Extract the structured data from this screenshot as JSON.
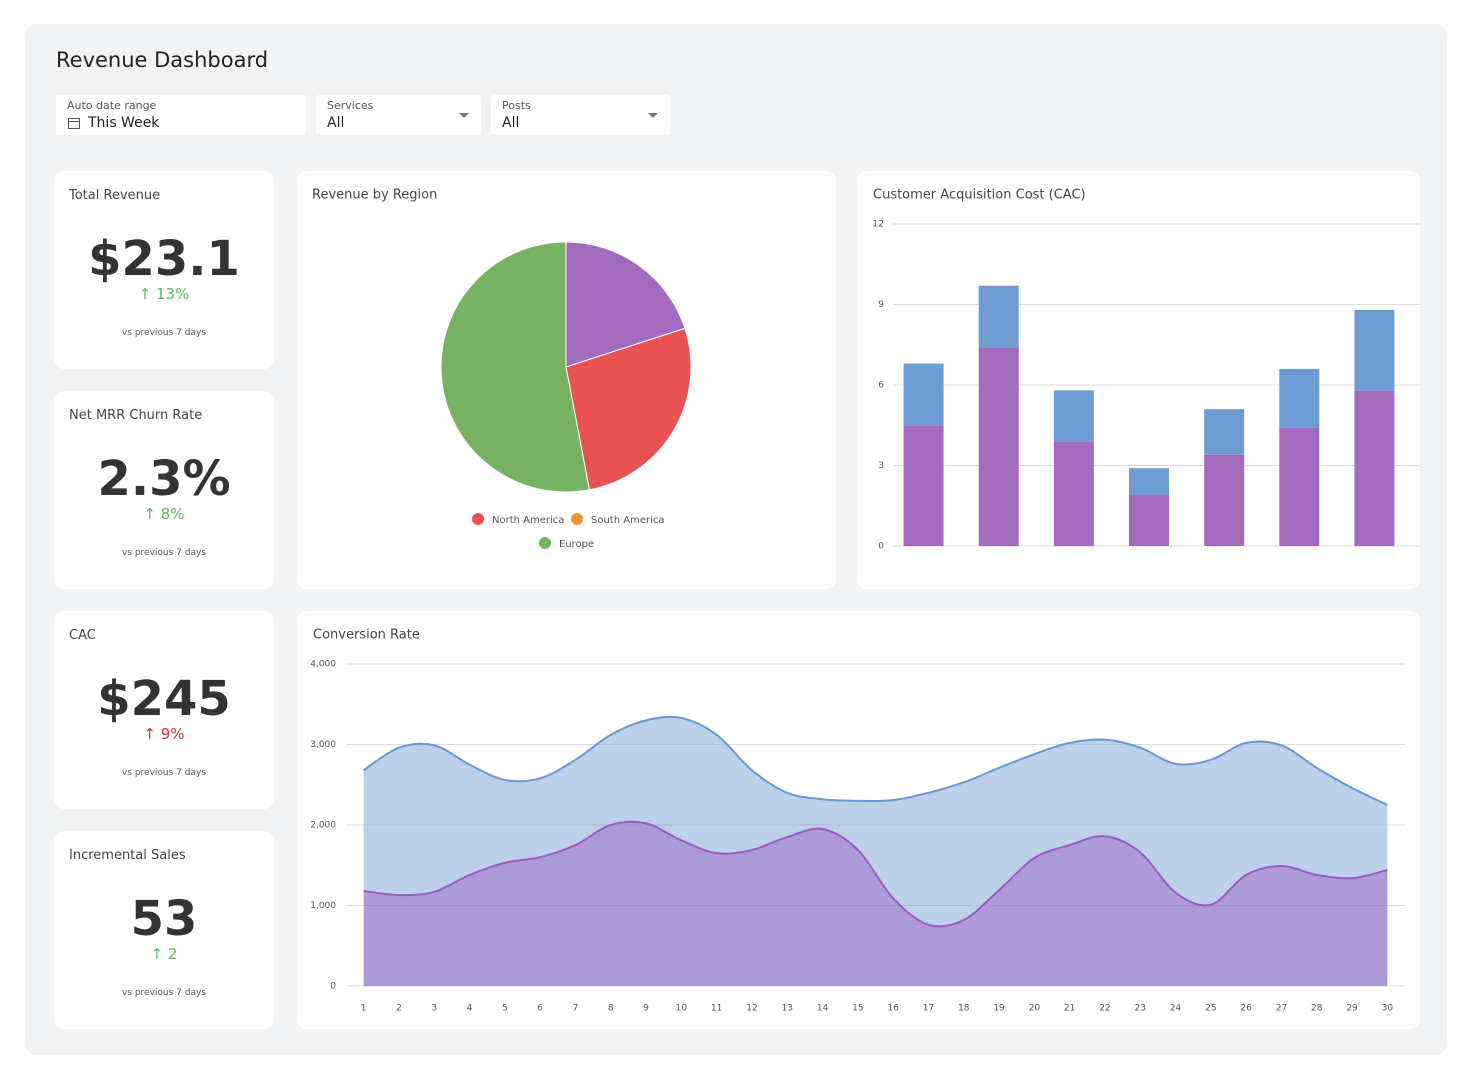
{
  "title": "Revenue Dashboard",
  "filters": [
    {
      "label": "Auto date range",
      "value": "This Week"
    },
    {
      "label": "Services",
      "value": "All"
    },
    {
      "label": "Posts",
      "value": "All"
    }
  ],
  "kpis": [
    {
      "title": "Total Revenue",
      "value": "$23.1",
      "change": "13%",
      "change_color": "#5cb85c",
      "note": "vs previous 7 days"
    },
    {
      "title": "Net MRR Churn Rate",
      "value": "2.3%",
      "change": "8%",
      "change_color": "#5cb85c",
      "note": "vs previous 7 days"
    },
    {
      "title": "CAC",
      "value": "$245",
      "change": "9%",
      "change_color": "#d0342c",
      "note": "vs previous 7 days"
    },
    {
      "title": "Incremental Sales",
      "value": "53",
      "change": "2",
      "change_color": "#5cb85c",
      "note": "vs previous 7 days"
    }
  ],
  "chart_data": [
    {
      "type": "pie",
      "title": "Revenue by Region",
      "categories": [
        null,
        "North America",
        "South America",
        "Europe"
      ],
      "values": [
        20,
        27,
        0,
        53
      ],
      "colors": [
        "#a36bbd",
        "#e85252",
        "#ee9436",
        "#76b262"
      ]
    },
    {
      "type": "bar",
      "title": "Customer Acquisition Cost (CAC)",
      "stacked": true,
      "categories": [
        null,
        null,
        null,
        null,
        null,
        null,
        null
      ],
      "series": [
        {
          "color": "#a36bbd",
          "values": [
            4.5,
            7.4,
            3.9,
            1.9,
            3.4,
            4.4,
            5.8
          ]
        },
        {
          "color": "#6f9bd3",
          "values": [
            2.3,
            2.3,
            1.9,
            1.0,
            1.7,
            2.2,
            3.0
          ]
        }
      ],
      "ylim": [
        0,
        12
      ],
      "yticks": [
        0,
        3,
        6,
        9,
        12
      ],
      "grid": true
    },
    {
      "type": "area",
      "title": "Conversion Rate",
      "categories": [
        "1",
        "2",
        "3",
        "4",
        "5",
        "6",
        "7",
        "8",
        "9",
        "10",
        "11",
        "12",
        "13",
        "14",
        "15",
        "16",
        "17",
        "18",
        "19",
        "20",
        "21",
        "22",
        "23",
        "24",
        "25",
        "26",
        "27",
        "28",
        "29",
        "30"
      ],
      "series": [
        {
          "color": "#6b97d0",
          "values": [
            2680,
            2960,
            2990,
            2750,
            2560,
            2580,
            2810,
            3120,
            3300,
            3330,
            3120,
            2680,
            2400,
            2320,
            2300,
            2310,
            2400,
            2530,
            2710,
            2880,
            3020,
            3060,
            2960,
            2760,
            2810,
            3020,
            2990,
            2710,
            2460,
            2250
          ]
        },
        {
          "color": "#9b5cc0",
          "values": [
            1180,
            1130,
            1170,
            1380,
            1530,
            1600,
            1750,
            2000,
            2020,
            1810,
            1650,
            1690,
            1850,
            1950,
            1690,
            1090,
            760,
            820,
            1190,
            1590,
            1750,
            1860,
            1660,
            1160,
            1010,
            1380,
            1490,
            1380,
            1340,
            1440
          ]
        }
      ],
      "ylim": [
        0,
        4000
      ],
      "yticks": [
        0,
        {
          "value": 1000,
          "label": "1,000"
        },
        {
          "value": 2000,
          "label": "2,000"
        },
        {
          "value": 3000,
          "label": "3,000"
        },
        {
          "value": 4000,
          "label": "4,000"
        }
      ],
      "grid": true
    }
  ]
}
